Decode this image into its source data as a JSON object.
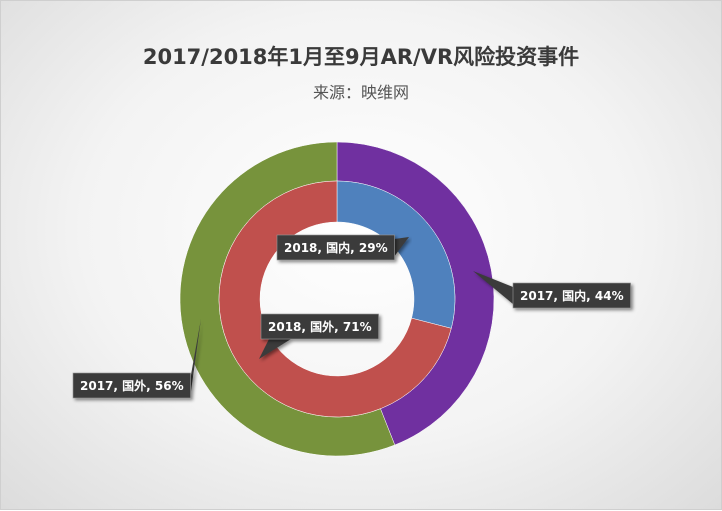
{
  "title": "2017/2018年1月至9月AR/VR风险投资事件",
  "subtitle": "来源：映维网",
  "chart_data": {
    "type": "donut",
    "rings": [
      {
        "name": "2017",
        "slices": [
          {
            "category": "国内",
            "value": 44,
            "label": "2017, 国内, 44%",
            "color": "#7030a0"
          },
          {
            "category": "国外",
            "value": 56,
            "label": "2017, 国外, 56%",
            "color": "#77933c"
          }
        ]
      },
      {
        "name": "2018",
        "slices": [
          {
            "category": "国内",
            "value": 29,
            "label": "2018, 国内, 29%",
            "color": "#4f81bd"
          },
          {
            "category": "国外",
            "value": 71,
            "label": "2018, 国外, 71%",
            "color": "#c0504d"
          }
        ]
      }
    ]
  }
}
